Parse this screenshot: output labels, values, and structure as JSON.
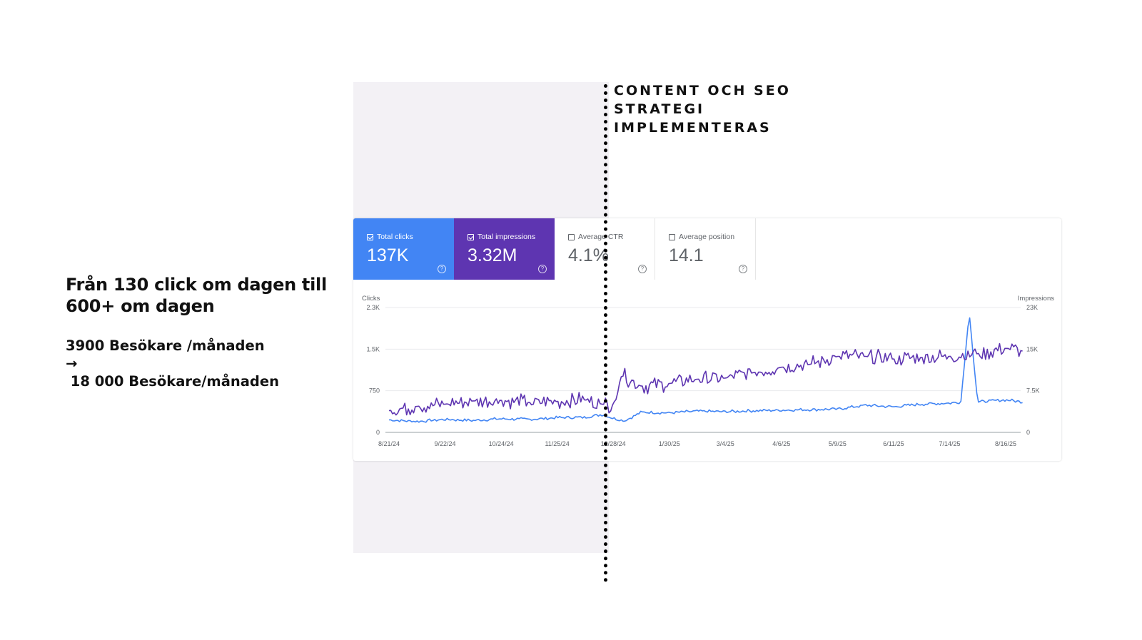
{
  "headline": "Från 130 click om dagen till 600+ om dagen",
  "stats": {
    "before": "3900 Besökare /månaden",
    "arrow": "→",
    "after": " 18 000 Besökare/månaden"
  },
  "annotation": "CONTENT OCH SEO STRATEGI IMPLEMENTERAS",
  "metrics": [
    {
      "label": "Total clicks",
      "value": "137K",
      "checked": true,
      "color": "#4285f4"
    },
    {
      "label": "Total impressions",
      "value": "3.32M",
      "checked": true,
      "color": "#5e35b1"
    },
    {
      "label": "Average CTR",
      "value": "4.1%",
      "checked": false
    },
    {
      "label": "Average position",
      "value": "14.1",
      "checked": false
    }
  ],
  "chart_data": {
    "type": "line",
    "x": [
      "8/21/24",
      "9/22/24",
      "10/24/24",
      "11/25/24",
      "12/28/24",
      "1/30/25",
      "3/4/25",
      "4/6/25",
      "5/9/25",
      "6/11/25",
      "7/14/25",
      "8/16/25"
    ],
    "xlabel": "",
    "ylabel_left": "Clicks",
    "ylabel_right": "Impressions",
    "ylim_left": [
      0,
      2300
    ],
    "ylim_right": [
      0,
      23000
    ],
    "yticks_left": [
      "0",
      "750",
      "1.5K",
      "2.3K"
    ],
    "yticks_right": [
      "0",
      "7.5K",
      "15K",
      "23K"
    ],
    "grid": true,
    "series": [
      {
        "name": "Clicks",
        "axis": "left",
        "color": "#4285f4",
        "anchors": [
          [
            0,
            230
          ],
          [
            0.5,
            200
          ],
          [
            1,
            240
          ],
          [
            1.5,
            220
          ],
          [
            2,
            250
          ],
          [
            2.5,
            240
          ],
          [
            3,
            270
          ],
          [
            3.5,
            280
          ],
          [
            3.8,
            330
          ],
          [
            4,
            260
          ],
          [
            4.2,
            210
          ],
          [
            4.5,
            370
          ],
          [
            5,
            360
          ],
          [
            5.5,
            390
          ],
          [
            6,
            380
          ],
          [
            6.5,
            400
          ],
          [
            7,
            410
          ],
          [
            7.5,
            420
          ],
          [
            8,
            430
          ],
          [
            8.5,
            500
          ],
          [
            9,
            470
          ],
          [
            9.5,
            520
          ],
          [
            10,
            540
          ],
          [
            10.2,
            560
          ],
          [
            10.35,
            2200
          ],
          [
            10.5,
            560
          ],
          [
            11,
            600
          ],
          [
            11.3,
            560
          ]
        ],
        "noise": 30
      },
      {
        "name": "Impressions",
        "axis": "right",
        "color": "#5e35b1",
        "anchors": [
          [
            0,
            4000
          ],
          [
            0.5,
            4800
          ],
          [
            1,
            5200
          ],
          [
            1.5,
            5800
          ],
          [
            2,
            5900
          ],
          [
            2.5,
            5500
          ],
          [
            3,
            5700
          ],
          [
            3.5,
            6000
          ],
          [
            3.8,
            5200
          ],
          [
            4,
            5000
          ],
          [
            4.15,
            10500
          ],
          [
            4.5,
            8500
          ],
          [
            5,
            9000
          ],
          [
            5.5,
            9800
          ],
          [
            6,
            10000
          ],
          [
            6.5,
            11000
          ],
          [
            7,
            12000
          ],
          [
            7.5,
            12500
          ],
          [
            8,
            14000
          ],
          [
            8.5,
            14000
          ],
          [
            9,
            13500
          ],
          [
            9.5,
            13800
          ],
          [
            10,
            14000
          ],
          [
            10.5,
            14500
          ],
          [
            11,
            15500
          ],
          [
            11.3,
            15000
          ]
        ],
        "noise": 1600
      }
    ]
  }
}
